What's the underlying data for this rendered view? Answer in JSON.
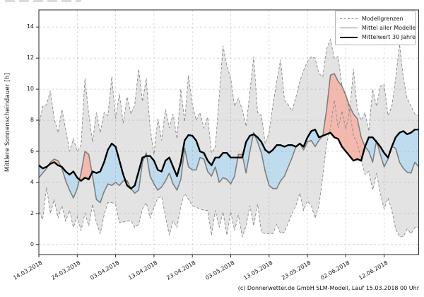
{
  "copyright": "(c) Donnerwetter.de GmbH SLM-Modell, Lauf 15.03.2018 00 Uhr",
  "chart_data": {
    "type": "line",
    "title": "",
    "xlabel": "",
    "ylabel": "Mittlere Sonnenscheindauer [h]",
    "ylim": [
      -0.65,
      15.1
    ],
    "yticks": [
      0,
      2,
      4,
      6,
      8,
      10,
      12,
      14
    ],
    "grid": true,
    "x_start_date": "14.03.2018",
    "x_step_days": 1,
    "n_days": 100,
    "xtick_labels": [
      "14.03.2018",
      "24.03.2018",
      "03.04.2018",
      "13.04.2018",
      "23.04.2018",
      "03.05.2018",
      "13.05.2018",
      "23.05.2018",
      "02.06.2018",
      "12.06.2018"
    ],
    "xtick_day_index": [
      0,
      10,
      20,
      30,
      40,
      50,
      60,
      70,
      80,
      90
    ],
    "legend": {
      "position": "upper right",
      "entries": [
        {
          "label": "Modellgrenzen",
          "style": "dashed-gray"
        },
        {
          "label": "Mittel aller Modelle",
          "style": "solid-gray"
        },
        {
          "label": "Mittelwert 30 Jahre",
          "style": "solid-black-thick"
        }
      ]
    },
    "series": [
      {
        "name": "Modellgrenzen oben",
        "values": [
          7.6,
          8.9,
          9.0,
          9.9,
          8.1,
          7.2,
          8.7,
          7.4,
          6.0,
          6.8,
          6.0,
          6.4,
          10.7,
          8.4,
          6.6,
          8.5,
          7.2,
          8.5,
          8.3,
          10.8,
          8.1,
          9.7,
          7.8,
          9.5,
          8.4,
          9.0,
          11.3,
          9.2,
          10.7,
          7.5,
          5.8,
          8.1,
          6.7,
          8.7,
          7.5,
          8.4,
          6.8,
          10.0,
          7.9,
          10.9,
          9.0,
          8.0,
          8.5,
          7.5,
          8.2,
          5.9,
          6.3,
          9.5,
          12.8,
          11.5,
          10.7,
          8.9,
          9.4,
          8.7,
          7.6,
          9.8,
          12.1,
          8.5,
          8.3,
          6.5,
          7.2,
          9.0,
          10.5,
          11.9,
          9.3,
          9.0,
          8.6,
          9.5,
          10.5,
          11.2,
          11.8,
          12.1,
          12.0,
          11.0,
          10.8,
          12.6,
          13.2,
          12.0,
          12.1,
          10.2,
          9.7,
          8.5,
          11.3,
          8.7,
          8.0,
          8.5,
          7.3,
          10.0,
          8.9,
          10.2,
          10.3,
          8.3,
          8.9,
          10.7,
          12.9,
          10.7,
          9.4,
          8.9,
          8.4,
          8.3
        ]
      },
      {
        "name": "Modellgrenzen unten",
        "values": [
          2.1,
          1.6,
          3.7,
          2.0,
          2.9,
          1.7,
          2.5,
          1.5,
          2.2,
          1.1,
          1.8,
          0.9,
          2.0,
          1.2,
          2.6,
          1.4,
          0.7,
          1.9,
          2.7,
          2.7,
          2.6,
          1.4,
          1.45,
          1.5,
          1.55,
          1.1,
          1.3,
          2.3,
          2.7,
          1.7,
          2.4,
          3.0,
          3.1,
          1.8,
          0.6,
          1.5,
          1.1,
          2.5,
          3.3,
          2.9,
          2.5,
          2.4,
          2.3,
          2.2,
          2.2,
          0.6,
          2.2,
          1.1,
          2.1,
          0.6,
          2.1,
          0.9,
          1.9,
          0.5,
          1.2,
          2.5,
          1.2,
          2.6,
          0.8,
          0.7,
          0.7,
          0.7,
          1.3,
          0.7,
          0.8,
          1.4,
          2.0,
          2.5,
          3.3,
          2.2,
          2.8,
          2.5,
          1.7,
          2.5,
          4.4,
          6.5,
          7.5,
          9.3,
          7.5,
          8.6,
          7.4,
          8.6,
          7.0,
          6.5,
          5.5,
          4.5,
          4.7,
          3.5,
          4.6,
          3.3,
          2.3,
          3.0,
          2.2,
          1.0,
          0.5,
          0.5,
          1.0,
          0.7,
          1.1,
          1.1
        ]
      },
      {
        "name": "Mittel aller Modelle",
        "values": [
          4.3,
          4.6,
          4.9,
          5.3,
          5.5,
          5.4,
          4.9,
          4.1,
          3.5,
          3.0,
          3.6,
          4.6,
          6.0,
          5.8,
          4.4,
          2.9,
          2.7,
          3.4,
          3.9,
          3.8,
          4.0,
          3.8,
          4.1,
          4.1,
          3.6,
          3.3,
          3.5,
          5.3,
          5.9,
          4.4,
          3.9,
          3.5,
          3.7,
          4.1,
          4.6,
          3.9,
          3.5,
          4.2,
          6.2,
          5.0,
          4.8,
          4.8,
          5.6,
          5.5,
          4.7,
          4.4,
          5.0,
          4.0,
          4.3,
          4.2,
          3.9,
          4.4,
          5.8,
          5.8,
          4.6,
          6.0,
          7.2,
          6.6,
          5.9,
          4.7,
          3.8,
          3.6,
          3.6,
          4.1,
          4.4,
          5.0,
          5.6,
          6.3,
          6.5,
          6.1,
          6.6,
          6.7,
          6.3,
          6.7,
          7.0,
          8.7,
          10.9,
          11.0,
          10.5,
          10.2,
          9.6,
          8.9,
          8.4,
          8.1,
          6.9,
          6.3,
          6.0,
          5.3,
          6.7,
          5.8,
          5.0,
          5.5,
          6.3,
          6.2,
          5.3,
          4.9,
          4.65,
          4.6,
          5.3,
          5.0
        ]
      },
      {
        "name": "Mittelwert 30 Jahre",
        "values": [
          5.1,
          4.9,
          5.0,
          5.2,
          5.3,
          5.1,
          5.0,
          4.7,
          4.5,
          4.7,
          4.3,
          4.1,
          4.3,
          4.2,
          4.7,
          4.6,
          4.7,
          5.3,
          6.1,
          6.5,
          6.3,
          5.4,
          4.5,
          3.8,
          3.6,
          3.8,
          4.7,
          5.6,
          5.7,
          5.7,
          5.4,
          4.8,
          4.7,
          5.4,
          5.6,
          5.0,
          4.4,
          5.3,
          6.7,
          7.05,
          7.0,
          6.7,
          6.0,
          5.9,
          5.4,
          5.1,
          5.6,
          5.6,
          5.9,
          5.9,
          5.6,
          5.6,
          5.6,
          5.6,
          6.6,
          7.0,
          7.1,
          6.9,
          6.6,
          6.1,
          5.9,
          6.1,
          6.4,
          6.4,
          6.3,
          6.4,
          6.4,
          6.3,
          6.5,
          6.3,
          6.9,
          7.3,
          7.4,
          6.9,
          7.0,
          7.1,
          7.2,
          6.9,
          6.8,
          6.3,
          6.0,
          5.7,
          5.4,
          5.5,
          5.4,
          6.3,
          6.9,
          6.9,
          6.6,
          6.3,
          5.9,
          5.6,
          6.3,
          6.9,
          7.2,
          7.3,
          7.1,
          7.2,
          7.4,
          7.4
        ]
      }
    ],
    "colors": {
      "band_fill": "#e3e3e3",
      "above_mean_fill": "#f4b9ae",
      "below_mean_fill": "#bfdcee",
      "bounds_line": "#8a8a8a",
      "model_mean_line": "#7f7f7f",
      "climate_mean_line": "#000000",
      "grid_line": "#9a9a9a",
      "frame": "#262626"
    }
  }
}
